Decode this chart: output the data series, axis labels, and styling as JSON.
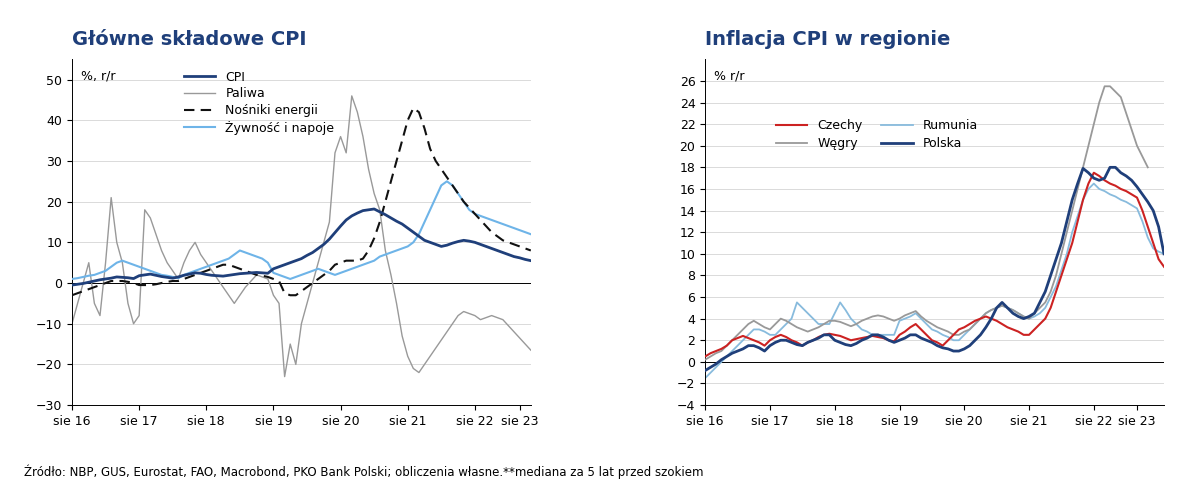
{
  "title1": "Główne składowe CPI",
  "title2": "Inflacja CPI w regionie",
  "ylabel1": "%, r/r",
  "ylabel2": "% r/r",
  "footnote": "Źródło: NBP, GUS, Eurostat, FAO, Macrobond, PKO Bank Polski; obliczenia własne.**mediana za 5 lat przed szokiem",
  "xtick_labels": [
    "sie 16",
    "sie 17",
    "sie 18",
    "sie 19",
    "sie 20",
    "sie 21",
    "sie 22",
    "sie 23"
  ],
  "chart1": {
    "ylim": [
      -30,
      55
    ],
    "yticks": [
      -30,
      -20,
      -10,
      0,
      10,
      20,
      30,
      40,
      50
    ],
    "CPI": [
      -0.5,
      -0.3,
      -0.1,
      0.2,
      0.5,
      0.8,
      1.0,
      1.2,
      1.5,
      1.4,
      1.3,
      1.1,
      1.8,
      2.0,
      2.2,
      1.9,
      1.6,
      1.4,
      1.2,
      1.5,
      1.9,
      2.2,
      2.5,
      2.4,
      2.1,
      1.9,
      1.8,
      1.7,
      1.9,
      2.1,
      2.3,
      2.4,
      2.5,
      2.6,
      2.5,
      2.4,
      3.5,
      4.0,
      4.5,
      5.0,
      5.5,
      6.0,
      6.8,
      7.5,
      8.5,
      9.5,
      10.8,
      12.4,
      14.0,
      15.5,
      16.5,
      17.2,
      17.8,
      18.0,
      18.2,
      17.5,
      16.8,
      16.0,
      15.2,
      14.5,
      13.5,
      12.5,
      11.5,
      10.5,
      10.0,
      9.5,
      9.0,
      9.3,
      9.8,
      10.2,
      10.5,
      10.3,
      10.0,
      9.5,
      9.0,
      8.5,
      8.0,
      7.5,
      7.0,
      6.5,
      6.2,
      5.8,
      5.5
    ],
    "Paliwa": [
      -10.0,
      -5.0,
      0.0,
      5.0,
      -5.0,
      -8.0,
      5.0,
      21.0,
      10.0,
      5.0,
      -5.0,
      -10.0,
      -8.0,
      18.0,
      16.0,
      12.0,
      8.0,
      5.0,
      3.0,
      1.0,
      5.0,
      8.0,
      10.0,
      7.0,
      5.0,
      3.0,
      1.0,
      -1.0,
      -3.0,
      -5.0,
      -3.0,
      -1.0,
      0.5,
      2.0,
      1.5,
      1.0,
      -3.0,
      -5.0,
      -23.0,
      -15.0,
      -20.0,
      -10.0,
      -5.0,
      0.0,
      5.0,
      10.0,
      15.0,
      32.0,
      36.0,
      32.0,
      46.0,
      42.0,
      36.0,
      28.0,
      22.0,
      18.0,
      8.0,
      2.0,
      -5.0,
      -13.0,
      -18.0,
      -21.0,
      -22.0,
      -20.0,
      -18.0,
      -16.0,
      -14.0,
      -12.0,
      -10.0,
      -8.0,
      -7.0,
      -7.5,
      -8.0,
      -9.0,
      -8.5,
      -8.0,
      -8.5,
      -9.0,
      -10.5,
      -12.0,
      -13.5,
      -15.0,
      -16.5
    ],
    "Nosniki": [
      -3.0,
      -2.5,
      -2.0,
      -1.5,
      -1.0,
      -0.5,
      0.0,
      0.5,
      0.5,
      0.5,
      0.3,
      0.0,
      -0.5,
      -0.5,
      -0.5,
      -0.3,
      0.0,
      0.3,
      0.5,
      0.5,
      1.0,
      1.5,
      2.0,
      2.5,
      3.0,
      3.5,
      4.0,
      4.5,
      4.5,
      4.0,
      3.5,
      3.0,
      2.5,
      2.0,
      1.8,
      1.5,
      1.0,
      0.5,
      -2.5,
      -3.0,
      -3.0,
      -2.0,
      -1.0,
      0.0,
      1.0,
      2.0,
      3.0,
      4.5,
      5.0,
      5.5,
      5.5,
      5.5,
      6.0,
      8.0,
      11.0,
      15.0,
      20.0,
      25.0,
      30.0,
      35.0,
      40.0,
      43.0,
      42.0,
      38.0,
      33.0,
      30.0,
      28.0,
      26.0,
      24.0,
      22.0,
      20.0,
      18.5,
      17.0,
      15.5,
      14.0,
      12.5,
      11.5,
      10.5,
      10.0,
      9.5,
      9.0,
      8.5,
      8.0
    ],
    "Zywnosc": [
      1.0,
      1.2,
      1.5,
      1.8,
      2.0,
      2.5,
      3.0,
      4.0,
      5.0,
      5.5,
      5.0,
      4.5,
      4.0,
      3.5,
      3.0,
      2.5,
      2.0,
      1.8,
      1.5,
      1.2,
      2.0,
      2.5,
      3.0,
      3.5,
      4.0,
      4.5,
      5.0,
      5.5,
      6.0,
      7.0,
      8.0,
      7.5,
      7.0,
      6.5,
      6.0,
      5.0,
      2.5,
      2.0,
      1.5,
      1.0,
      1.5,
      2.0,
      2.5,
      3.0,
      3.5,
      3.0,
      2.5,
      2.0,
      2.5,
      3.0,
      3.5,
      4.0,
      4.5,
      5.0,
      5.5,
      6.5,
      7.0,
      7.5,
      8.0,
      8.5,
      9.0,
      10.0,
      12.0,
      15.0,
      18.0,
      21.0,
      24.0,
      25.0,
      24.0,
      22.0,
      20.0,
      18.0,
      17.0,
      16.5,
      16.0,
      15.5,
      15.0,
      14.5,
      14.0,
      13.5,
      13.0,
      12.5,
      12.0
    ],
    "CPI_color": "#1f3f7a",
    "Paliwa_color": "#999999",
    "Nosniki_color": "#111111",
    "Zywnosc_color": "#6eb4e8"
  },
  "chart2": {
    "ylim": [
      -4,
      28
    ],
    "yticks": [
      -4,
      -2,
      0,
      2,
      4,
      6,
      8,
      10,
      12,
      14,
      16,
      18,
      20,
      22,
      24,
      26
    ],
    "Czechy": [
      0.5,
      0.8,
      1.0,
      1.2,
      1.5,
      2.0,
      2.2,
      2.4,
      2.2,
      2.0,
      1.8,
      1.5,
      2.0,
      2.3,
      2.5,
      2.3,
      2.0,
      1.8,
      1.5,
      1.8,
      2.0,
      2.3,
      2.5,
      2.6,
      2.5,
      2.4,
      2.2,
      2.0,
      2.1,
      2.2,
      2.3,
      2.4,
      2.3,
      2.2,
      2.0,
      1.9,
      2.5,
      2.8,
      3.2,
      3.5,
      3.0,
      2.5,
      2.0,
      1.8,
      1.5,
      2.0,
      2.5,
      3.0,
      3.2,
      3.5,
      3.8,
      4.0,
      4.2,
      4.0,
      3.8,
      3.5,
      3.2,
      3.0,
      2.8,
      2.5,
      2.5,
      3.0,
      3.5,
      4.0,
      5.0,
      6.5,
      8.0,
      9.5,
      11.0,
      13.0,
      15.0,
      16.5,
      17.5,
      17.2,
      16.8,
      16.5,
      16.3,
      16.0,
      15.8,
      15.5,
      15.2,
      14.0,
      12.5,
      11.0,
      9.5,
      8.8
    ],
    "Wegry": [
      0.2,
      0.5,
      0.8,
      1.0,
      1.5,
      2.0,
      2.5,
      3.0,
      3.5,
      3.8,
      3.5,
      3.2,
      3.0,
      3.5,
      4.0,
      3.8,
      3.5,
      3.2,
      3.0,
      2.8,
      3.0,
      3.2,
      3.5,
      3.8,
      3.8,
      3.7,
      3.5,
      3.3,
      3.5,
      3.8,
      4.0,
      4.2,
      4.3,
      4.2,
      4.0,
      3.8,
      4.0,
      4.3,
      4.5,
      4.7,
      4.2,
      3.8,
      3.5,
      3.2,
      3.0,
      2.8,
      2.5,
      2.5,
      2.8,
      3.0,
      3.5,
      4.0,
      4.5,
      4.8,
      5.0,
      5.2,
      5.0,
      4.8,
      4.5,
      4.2,
      4.0,
      4.5,
      5.0,
      5.5,
      6.5,
      8.0,
      10.0,
      12.0,
      14.0,
      16.0,
      18.0,
      20.0,
      22.0,
      24.0,
      25.5,
      25.5,
      25.0,
      24.5,
      23.0,
      21.5,
      20.0,
      19.0,
      18.0
    ],
    "Rumunia": [
      -1.5,
      -1.0,
      -0.5,
      0.0,
      0.5,
      1.0,
      1.5,
      2.0,
      2.5,
      3.0,
      3.0,
      2.8,
      2.5,
      2.5,
      3.0,
      3.5,
      4.0,
      5.5,
      5.0,
      4.5,
      4.0,
      3.5,
      3.5,
      3.5,
      4.5,
      5.5,
      4.8,
      4.0,
      3.5,
      3.0,
      2.8,
      2.5,
      2.5,
      2.5,
      2.5,
      2.5,
      3.8,
      4.0,
      4.2,
      4.5,
      4.0,
      3.5,
      3.0,
      2.8,
      2.5,
      2.3,
      2.0,
      2.0,
      2.5,
      3.0,
      3.5,
      4.0,
      4.5,
      4.8,
      5.0,
      5.2,
      5.0,
      4.8,
      4.5,
      4.2,
      4.0,
      4.2,
      4.5,
      5.0,
      6.0,
      7.0,
      8.5,
      10.0,
      12.0,
      13.5,
      15.0,
      16.0,
      16.5,
      16.0,
      15.8,
      15.5,
      15.3,
      15.0,
      14.8,
      14.5,
      14.2,
      13.0,
      11.5,
      10.5,
      10.2,
      10.0
    ],
    "Polska": [
      -0.8,
      -0.5,
      -0.2,
      0.2,
      0.5,
      0.8,
      1.0,
      1.2,
      1.5,
      1.5,
      1.3,
      1.0,
      1.5,
      1.8,
      2.0,
      2.0,
      1.8,
      1.6,
      1.5,
      1.8,
      2.0,
      2.2,
      2.5,
      2.5,
      2.0,
      1.8,
      1.6,
      1.5,
      1.7,
      2.0,
      2.2,
      2.5,
      2.5,
      2.3,
      2.0,
      1.8,
      2.0,
      2.2,
      2.5,
      2.5,
      2.2,
      2.0,
      1.8,
      1.5,
      1.3,
      1.2,
      1.0,
      1.0,
      1.2,
      1.5,
      2.0,
      2.5,
      3.2,
      4.0,
      5.0,
      5.5,
      5.0,
      4.5,
      4.2,
      4.0,
      4.2,
      4.5,
      5.5,
      6.5,
      8.0,
      9.5,
      11.0,
      13.0,
      15.0,
      16.5,
      17.9,
      17.5,
      17.0,
      16.8,
      17.0,
      18.0,
      18.0,
      17.5,
      17.2,
      16.8,
      16.2,
      15.5,
      14.8,
      14.0,
      12.5,
      10.0
    ],
    "Czechy_color": "#cc2222",
    "Wegry_color": "#999999",
    "Rumunia_color": "#88bbdd",
    "Polska_color": "#1f3f7a"
  },
  "title_color": "#1f3f7a",
  "title_fontsize": 14,
  "footnote_fontsize": 8.5,
  "background_color": "#ffffff"
}
